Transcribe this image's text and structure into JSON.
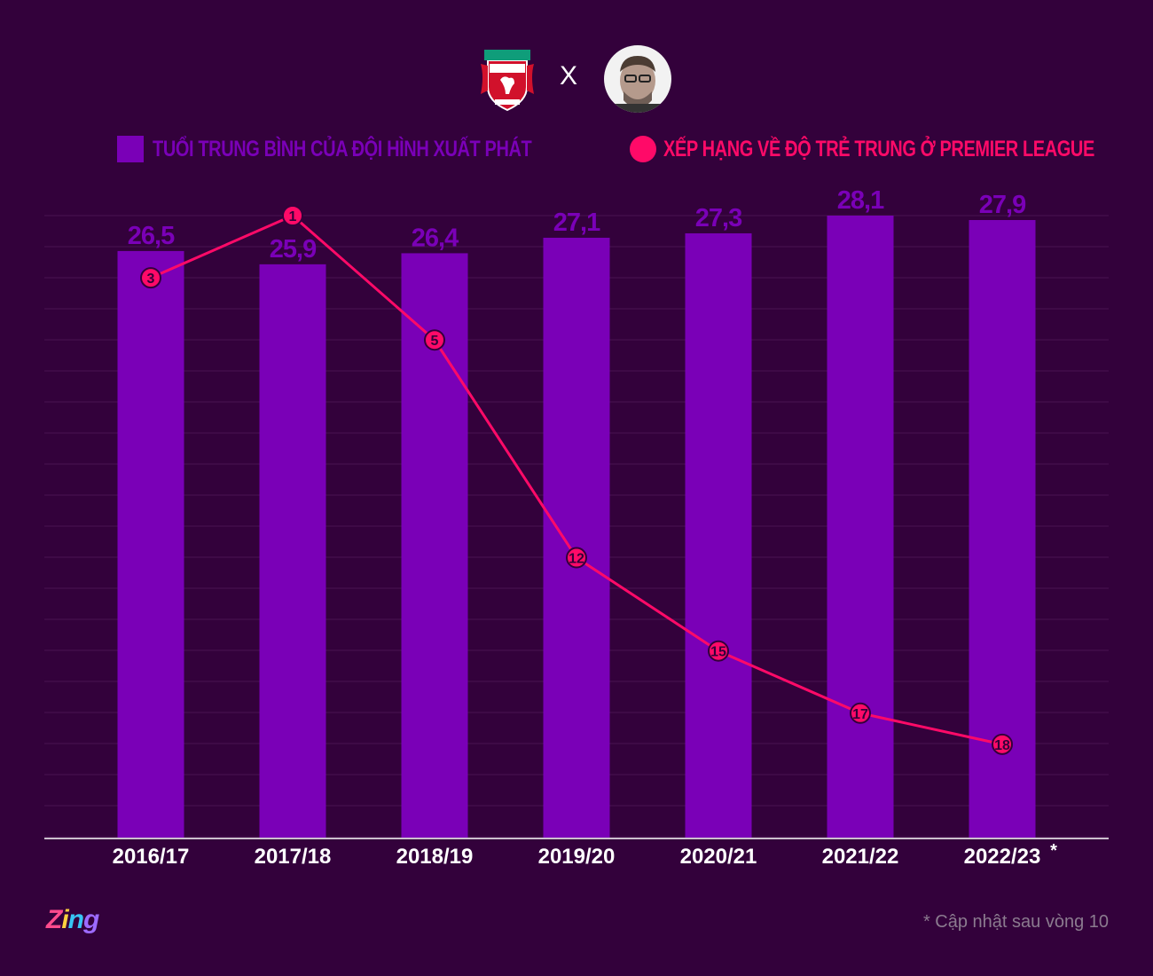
{
  "header": {
    "club": "Liverpool Football Club",
    "vs": "X",
    "person": "Jürgen Klopp"
  },
  "legend": {
    "bar_label": "TUỔI TRUNG BÌNH CỦA ĐỘI HÌNH XUẤT PHÁT",
    "line_label": "XẾP HẠNG VỀ ĐỘ TRẺ TRUNG Ở PREMIER LEAGUE"
  },
  "colors": {
    "background": "#33013b",
    "bar": "#7a00b7",
    "line": "#ff0a68",
    "gridline": "#4a1452"
  },
  "chart_data": {
    "type": "bar",
    "title": "",
    "categories": [
      "2016/17",
      "2017/18",
      "2018/19",
      "2019/20",
      "2020/21",
      "2021/22",
      "2022/23"
    ],
    "category_marks": [
      "",
      "",
      "",
      "",
      "",
      "",
      "*"
    ],
    "series": [
      {
        "name": "TUỔI TRUNG BÌNH CỦA ĐỘI HÌNH XUẤT PHÁT",
        "type": "bar",
        "values": [
          26.5,
          25.9,
          26.4,
          27.1,
          27.3,
          28.1,
          27.9
        ],
        "labels": [
          "26,5",
          "25,9",
          "26,4",
          "27,1",
          "27,3",
          "28,1",
          "27,9"
        ]
      },
      {
        "name": "XẾP HẠNG VỀ ĐỘ TRẺ TRUNG Ở PREMIER LEAGUE",
        "type": "line",
        "values": [
          3,
          1,
          5,
          12,
          15,
          17,
          18
        ],
        "labels": [
          "3",
          "1",
          "5",
          "12",
          "15",
          "17",
          "18"
        ],
        "axis": "rank",
        "range": [
          1,
          21
        ],
        "inverted": true
      }
    ],
    "ylim": [
      0,
      28.1
    ],
    "gridlines": true,
    "legend_position": "top",
    "xlabel": "",
    "ylabel": ""
  },
  "footer": {
    "logo": {
      "p1": "Z",
      "p2": "i",
      "p3": "n",
      "p4": "g"
    },
    "footnote": "* Cập nhật sau vòng 10"
  }
}
